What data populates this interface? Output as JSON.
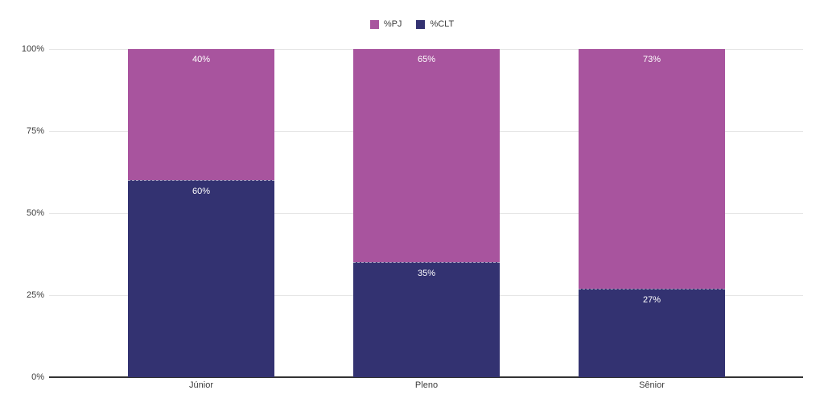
{
  "chart_data": {
    "type": "bar",
    "variant": "stacked-100-percent",
    "title": "",
    "xlabel": "",
    "ylabel": "",
    "categories": [
      "Júnior",
      "Pleno",
      "Sênior"
    ],
    "series": [
      {
        "name": "%PJ",
        "color": "#a8549e",
        "values": [
          40,
          65,
          73
        ],
        "labels": [
          "40%",
          "65%",
          "73%"
        ]
      },
      {
        "name": "%CLT",
        "color": "#333271",
        "values": [
          60,
          35,
          27
        ],
        "labels": [
          "60%",
          "35%",
          "27%"
        ]
      }
    ],
    "ylim": [
      0,
      100
    ],
    "yticks": [
      {
        "value": 0,
        "label": "0%"
      },
      {
        "value": 25,
        "label": "25%"
      },
      {
        "value": 50,
        "label": "50%"
      },
      {
        "value": 75,
        "label": "75%"
      },
      {
        "value": 100,
        "label": "100%"
      }
    ],
    "legend_position": "top-center",
    "grid": true,
    "style": {
      "background": "#ffffff",
      "gridline_color": "#e6e6e6",
      "axis_line_color": "#333333",
      "tick_text_color": "#3c3c3c",
      "data_label_color": "#ffffff"
    }
  }
}
